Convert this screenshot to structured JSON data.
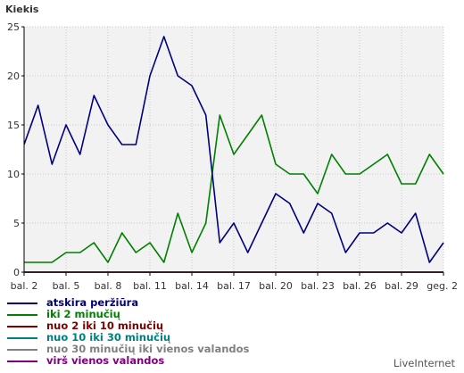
{
  "chart_data": {
    "type": "line",
    "ylabel": "Kiekis",
    "ylim": [
      0,
      25
    ],
    "yticks": [
      0,
      5,
      10,
      15,
      20,
      25
    ],
    "xticks": [
      "bal. 2",
      "bal. 5",
      "bal. 8",
      "bal. 11",
      "bal. 14",
      "bal. 17",
      "bal. 20",
      "bal. 23",
      "bal. 26",
      "bal. 29",
      "geg. 2"
    ],
    "grid": true,
    "legend_position": "bottom-left",
    "x": [
      "bal. 2",
      "bal. 3",
      "bal. 4",
      "bal. 5",
      "bal. 6",
      "bal. 7",
      "bal. 8",
      "bal. 9",
      "bal. 10",
      "bal. 11",
      "bal. 12",
      "bal. 13",
      "bal. 14",
      "bal. 15",
      "bal. 16",
      "bal. 17",
      "bal. 18",
      "bal. 19",
      "bal. 20",
      "bal. 21",
      "bal. 22",
      "bal. 23",
      "bal. 24",
      "bal. 25",
      "bal. 26",
      "bal. 27",
      "bal. 28",
      "bal. 29",
      "bal. 30",
      "geg. 1",
      "geg. 2"
    ],
    "series": [
      {
        "name": "atskira peržiūra",
        "color": "#000080",
        "values": [
          13,
          17,
          11,
          15,
          12,
          18,
          15,
          13,
          13,
          20,
          24,
          20,
          19,
          16,
          3,
          5,
          2,
          5,
          8,
          7,
          4,
          7,
          6,
          2,
          4,
          4,
          5,
          4,
          6,
          1,
          3
        ]
      },
      {
        "name": "iki 2 minučių",
        "color": "#008000",
        "values": [
          1,
          1,
          1,
          2,
          2,
          3,
          1,
          4,
          2,
          3,
          1,
          6,
          2,
          5,
          16,
          12,
          14,
          16,
          11,
          10,
          10,
          8,
          12,
          10,
          10,
          11,
          12,
          9,
          9,
          12,
          10
        ]
      },
      {
        "name": "nuo 2 iki 10 minučių",
        "color": "#800000",
        "values": [
          0,
          0,
          0,
          0,
          0,
          0,
          0,
          0,
          0,
          0,
          0,
          0,
          0,
          0,
          0,
          0,
          0,
          0,
          0,
          0,
          0,
          0,
          0,
          0,
          0,
          0,
          0,
          0,
          0,
          0,
          0
        ]
      },
      {
        "name": "nuo 10 iki 30 minučių",
        "color": "#008080",
        "values": [
          0,
          0,
          0,
          0,
          0,
          0,
          0,
          0,
          0,
          0,
          0,
          0,
          0,
          0,
          0,
          0,
          0,
          0,
          0,
          0,
          0,
          0,
          0,
          0,
          0,
          0,
          0,
          0,
          0,
          0,
          0
        ]
      },
      {
        "name": "nuo 30 minučių iki vienos valandos",
        "color": "#808080",
        "values": [
          0,
          0,
          0,
          0,
          0,
          0,
          0,
          0,
          0,
          0,
          0,
          0,
          0,
          0,
          0,
          0,
          0,
          0,
          0,
          0,
          0,
          0,
          0,
          0,
          0,
          0,
          0,
          0,
          0,
          0,
          0
        ]
      },
      {
        "name": "virš vienos valandos",
        "color": "#800080",
        "values": [
          0,
          0,
          0,
          0,
          0,
          0,
          0,
          0,
          0,
          0,
          0,
          0,
          0,
          0,
          0,
          0,
          0,
          0,
          0,
          0,
          0,
          0,
          0,
          0,
          0,
          0,
          0,
          0,
          0,
          0,
          0
        ]
      }
    ]
  },
  "credit": "LiveInternet"
}
